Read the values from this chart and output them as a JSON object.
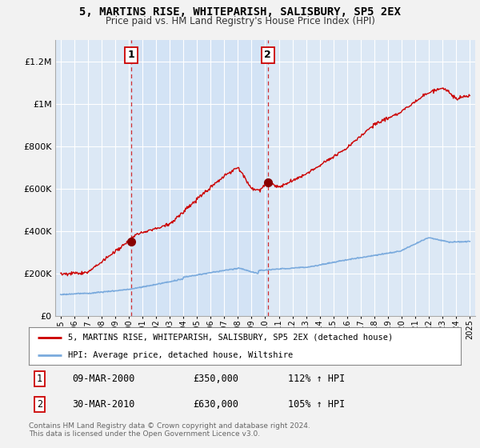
{
  "title": "5, MARTINS RISE, WHITEPARISH, SALISBURY, SP5 2EX",
  "subtitle": "Price paid vs. HM Land Registry's House Price Index (HPI)",
  "background_color": "#f2f2f2",
  "plot_bg_color": "#dce8f5",
  "shade_color": "#cce0f5",
  "grid_color": "#ffffff",
  "red_line_color": "#cc0000",
  "blue_line_color": "#7aaadd",
  "sale1_year": 2000.19,
  "sale1_price": 350000,
  "sale2_year": 2010.19,
  "sale2_price": 630000,
  "legend_label_red": "5, MARTINS RISE, WHITEPARISH, SALISBURY, SP5 2EX (detached house)",
  "legend_label_blue": "HPI: Average price, detached house, Wiltshire",
  "table_row1": [
    "1",
    "09-MAR-2000",
    "£350,000",
    "112% ↑ HPI"
  ],
  "table_row2": [
    "2",
    "30-MAR-2010",
    "£630,000",
    "105% ↑ HPI"
  ],
  "footer": "Contains HM Land Registry data © Crown copyright and database right 2024.\nThis data is licensed under the Open Government Licence v3.0.",
  "ylim": [
    0,
    1300000
  ],
  "xlim_start": 1994.6,
  "xlim_end": 2025.4
}
